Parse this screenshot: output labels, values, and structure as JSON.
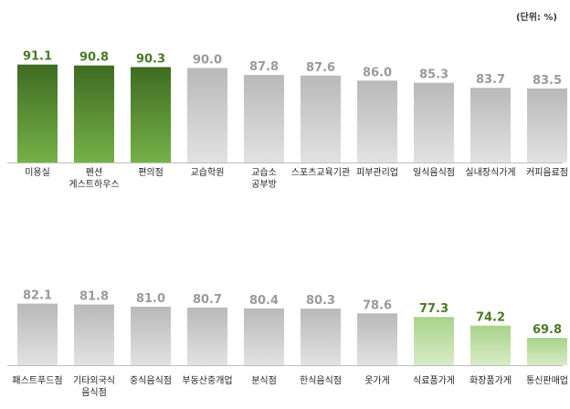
{
  "unit_label": "(단위: %)",
  "colors": {
    "top_bar_dark": "#3f6b22",
    "top_bar_light": "#74b247",
    "bottom_bar_dark": "#a8d38a",
    "bottom_bar_light": "#d8ecc6",
    "grey_bar_dark": "#b9b9b9",
    "grey_bar_light": "#e2e2e2",
    "highlight_value_text": "#4a7a25",
    "normal_value_text": "#9a9a9a",
    "category_text": "#222222",
    "baseline": "#bdbdbd"
  },
  "chart_data": [
    {
      "type": "bar",
      "categories": [
        "미용실",
        "펜션\n게스트하우스",
        "편의점",
        "교습학원",
        "교습소\n공부방",
        "스포츠교육기관",
        "피부관리업",
        "일식음식점",
        "실내장식가게",
        "커피음료점"
      ],
      "values": [
        91.1,
        90.8,
        90.3,
        90.0,
        87.8,
        87.6,
        86.0,
        85.3,
        83.7,
        83.5
      ],
      "value_labels": [
        "91.1",
        "90.8",
        "90.3",
        "90.0",
        "87.8",
        "87.6",
        "86.0",
        "85.3",
        "83.7",
        "83.5"
      ],
      "highlight": [
        "top",
        "top",
        "top",
        "none",
        "none",
        "none",
        "none",
        "none",
        "none",
        "none"
      ]
    },
    {
      "type": "bar",
      "categories": [
        "패스트푸드점",
        "기타외국식\n음식점",
        "중식음식점",
        "부동산중개업",
        "분식점",
        "한식음식점",
        "옷가게",
        "식료품가게",
        "화장품가게",
        "통신판매업"
      ],
      "values": [
        82.1,
        81.8,
        81.0,
        80.7,
        80.4,
        80.3,
        78.6,
        77.3,
        74.2,
        69.8
      ],
      "value_labels": [
        "82.1",
        "81.8",
        "81.0",
        "80.7",
        "80.4",
        "80.3",
        "78.6",
        "77.3",
        "74.2",
        "69.8"
      ],
      "highlight": [
        "none",
        "none",
        "none",
        "none",
        "none",
        "none",
        "none",
        "bottom",
        "bottom",
        "bottom"
      ]
    }
  ]
}
